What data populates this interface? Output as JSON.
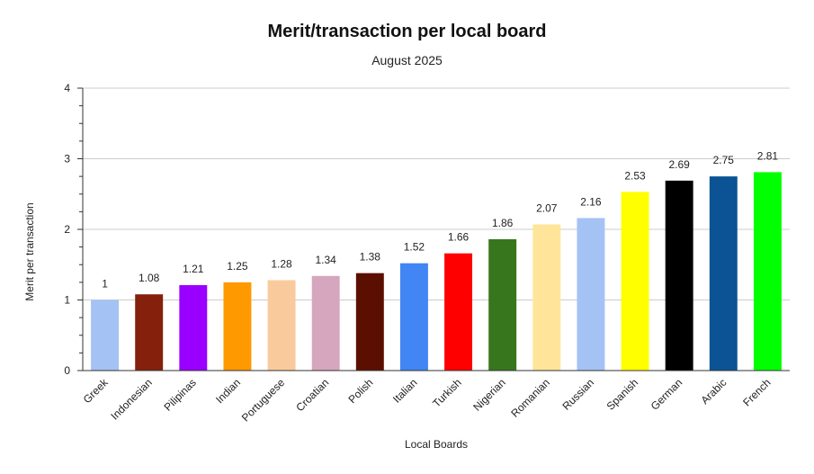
{
  "chart_data": {
    "type": "bar",
    "title": "Merit/transaction per local board",
    "subtitle": "August 2025",
    "xlabel": "Local Boards",
    "ylabel": "Merit per transaction",
    "ylim": [
      0,
      4
    ],
    "yticks": [
      0,
      1,
      2,
      3,
      4
    ],
    "grid": true,
    "legend": "none",
    "categories": [
      "Greek",
      "Indonesian",
      "Pilipinas",
      "Indian",
      "Portuguese",
      "Croatian",
      "Polish",
      "Italian",
      "Turkish",
      "Nigerian",
      "Romanian",
      "Russian",
      "Spanish",
      "German",
      "Arabic",
      "French"
    ],
    "values": [
      1,
      1.08,
      1.21,
      1.25,
      1.28,
      1.34,
      1.38,
      1.52,
      1.66,
      1.86,
      2.07,
      2.16,
      2.53,
      2.69,
      2.75,
      2.81
    ],
    "data_labels": [
      "1",
      "1.08",
      "1.21",
      "1.25",
      "1.28",
      "1.34",
      "1.38",
      "1.52",
      "1.66",
      "1.86",
      "2.07",
      "2.16",
      "2.53",
      "2.69",
      "2.75",
      "2.81"
    ],
    "colors": [
      "#a4c2f4",
      "#85200c",
      "#9900ff",
      "#ff9900",
      "#f9cb9c",
      "#d5a6bd",
      "#5b0f00",
      "#4285f4",
      "#ff0000",
      "#38761d",
      "#ffe599",
      "#a4c2f4",
      "#ffff00",
      "#000000",
      "#0b5394",
      "#00ff00"
    ]
  }
}
